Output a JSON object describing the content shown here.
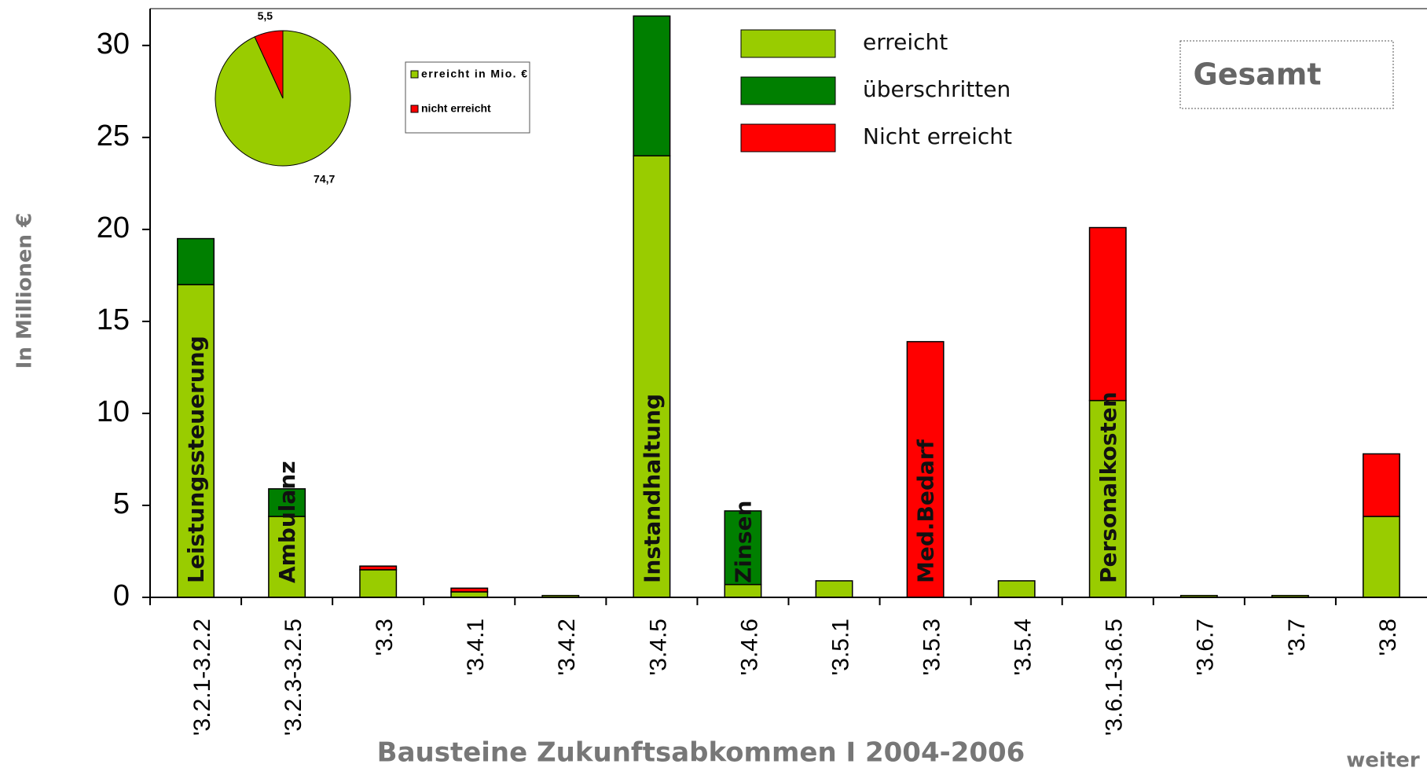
{
  "chart_data": [
    {
      "type": "stacked_bar",
      "y_label": "In Millionen €",
      "x_label": "Bausteine Zukunftsabkommen I 2004-2006",
      "categories": [
        "'3.2.1-3.2.2",
        "'3.2.3-3.2.5",
        "'3.3",
        "'3.4.1",
        "'3.4.2",
        "'3.4.5",
        "'3.4.6",
        "'3.5.1",
        "'3.5.3",
        "'3.5.4",
        "'3.6.1-3.6.5",
        "'3.6.7",
        "'3.7",
        "'3.8"
      ],
      "bar_labels": [
        "Leistungssteuerung",
        "Ambulanz",
        null,
        null,
        null,
        "Instandhaltung",
        "Zinsen",
        null,
        "Med.Bedarf",
        null,
        "Personalkosten",
        null,
        null,
        null
      ],
      "series": [
        {
          "name": "erreicht",
          "color": "#99cc00",
          "values": [
            17,
            4.4,
            1.5,
            0.3,
            0.1,
            24,
            0.7,
            0.9,
            0,
            0.9,
            10.7,
            0.1,
            0.1,
            4.4
          ]
        },
        {
          "name": "überschritten",
          "color": "#007f00",
          "values": [
            2.5,
            1.5,
            0,
            0,
            0,
            7.6,
            4.0,
            0,
            0,
            0,
            0,
            0,
            0,
            0
          ]
        },
        {
          "name": "Nicht erreicht",
          "color": "#ff0000",
          "values": [
            0,
            0,
            0.2,
            0.2,
            0,
            0,
            0,
            0,
            13.9,
            0,
            9.4,
            0,
            0,
            3.4
          ]
        }
      ],
      "ylim": [
        0,
        32
      ],
      "yticks": [
        0,
        5,
        10,
        15,
        20,
        25,
        30
      ]
    },
    {
      "type": "pie",
      "labels": [
        "erreicht in Mio. €",
        "nicht erreicht"
      ],
      "values": [
        74.7,
        5.5
      ],
      "value_labels": [
        "74,7",
        "5,5"
      ],
      "colors": [
        "#99cc00",
        "#ff0000"
      ]
    }
  ],
  "page": {
    "badge": "Gesamt",
    "next": "weiter"
  }
}
